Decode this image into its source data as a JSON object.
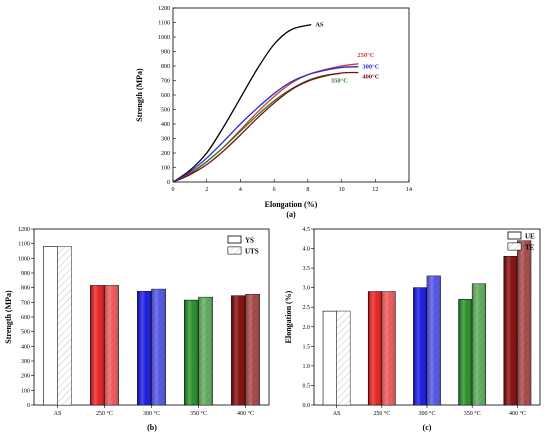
{
  "chart_data": [
    {
      "type": "line",
      "panel_label": "(a)",
      "xlabel": "Elongation (%)",
      "ylabel": "Strength (MPa)",
      "xlim": [
        0,
        14
      ],
      "ylim": [
        0,
        1200
      ],
      "x_ticks": [
        "0",
        "2",
        "4",
        "6",
        "8",
        "10",
        "12",
        "14"
      ],
      "y_ticks": [
        "0",
        "100",
        "200",
        "300",
        "400",
        "500",
        "600",
        "700",
        "800",
        "900",
        "1000",
        "1100",
        "1200"
      ],
      "grid": false,
      "series": [
        {
          "name": "AS",
          "color": "#000000",
          "x": [
            0,
            1,
            2,
            3,
            4,
            5,
            6,
            7,
            8.2
          ],
          "y": [
            0,
            80,
            200,
            380,
            580,
            780,
            950,
            1050,
            1085
          ]
        },
        {
          "name": "250°C",
          "color": "#d83a2a",
          "x": [
            0,
            1,
            2,
            3,
            4,
            5,
            6,
            7,
            8,
            9,
            10,
            11
          ],
          "y": [
            0,
            60,
            140,
            240,
            360,
            480,
            590,
            680,
            740,
            775,
            800,
            815
          ]
        },
        {
          "name": "300°C",
          "color": "#2a2ad8",
          "x": [
            0,
            1,
            2,
            3,
            4,
            5,
            6,
            7,
            8,
            9,
            10,
            11
          ],
          "y": [
            0,
            70,
            165,
            280,
            400,
            510,
            610,
            690,
            740,
            770,
            790,
            795
          ]
        },
        {
          "name": "350°C",
          "color": "#2a7a2a",
          "x": [
            0,
            1,
            2,
            3,
            4,
            5,
            6,
            7,
            8,
            9,
            9.9
          ],
          "y": [
            0,
            55,
            140,
            240,
            350,
            460,
            560,
            640,
            700,
            735,
            748
          ]
        },
        {
          "name": "400°C",
          "color": "#7a1010",
          "x": [
            0,
            1,
            2,
            3,
            4,
            5,
            6,
            7,
            8,
            9,
            10,
            11
          ],
          "y": [
            0,
            50,
            120,
            215,
            325,
            440,
            545,
            635,
            695,
            730,
            752,
            755
          ]
        }
      ]
    },
    {
      "type": "bar",
      "panel_label": "(b)",
      "xlabel": "",
      "ylabel": "Strength (MPa)",
      "ylim": [
        0,
        1200
      ],
      "y_ticks": [
        "0",
        "100",
        "200",
        "300",
        "400",
        "500",
        "600",
        "700",
        "800",
        "900",
        "1000",
        "1100",
        "1200"
      ],
      "categories": [
        "AS",
        "250 °C",
        "300 °C",
        "350 °C",
        "400 °C"
      ],
      "category_colors": [
        "#ffffff",
        "#e81818",
        "#1010e0",
        "#1e8a1e",
        "#800000"
      ],
      "series": [
        {
          "name": "YS",
          "pattern": "solid",
          "values": [
            1080,
            815,
            775,
            715,
            745
          ]
        },
        {
          "name": "UTS",
          "pattern": "hatched",
          "values": [
            1080,
            815,
            790,
            735,
            755
          ]
        }
      ],
      "legend": "top-right"
    },
    {
      "type": "bar",
      "panel_label": "(c)",
      "xlabel": "",
      "ylabel": "Elongation (%)",
      "ylim": [
        0,
        4.5
      ],
      "y_ticks": [
        "0.0",
        "0.5",
        "1.0",
        "1.5",
        "2.0",
        "2.5",
        "3.0",
        "3.5",
        "4.0",
        "4.5"
      ],
      "categories": [
        "AS",
        "250 °C",
        "300 °C",
        "350 °C",
        "400 °C"
      ],
      "category_colors": [
        "#ffffff",
        "#e81818",
        "#1010e0",
        "#1e8a1e",
        "#800000"
      ],
      "series": [
        {
          "name": "UE",
          "pattern": "solid",
          "values": [
            2.4,
            2.9,
            3.0,
            2.7,
            3.8
          ]
        },
        {
          "name": "TE",
          "pattern": "hatched",
          "values": [
            2.4,
            2.9,
            3.3,
            3.1,
            4.2
          ]
        }
      ],
      "legend": "top-right"
    }
  ]
}
